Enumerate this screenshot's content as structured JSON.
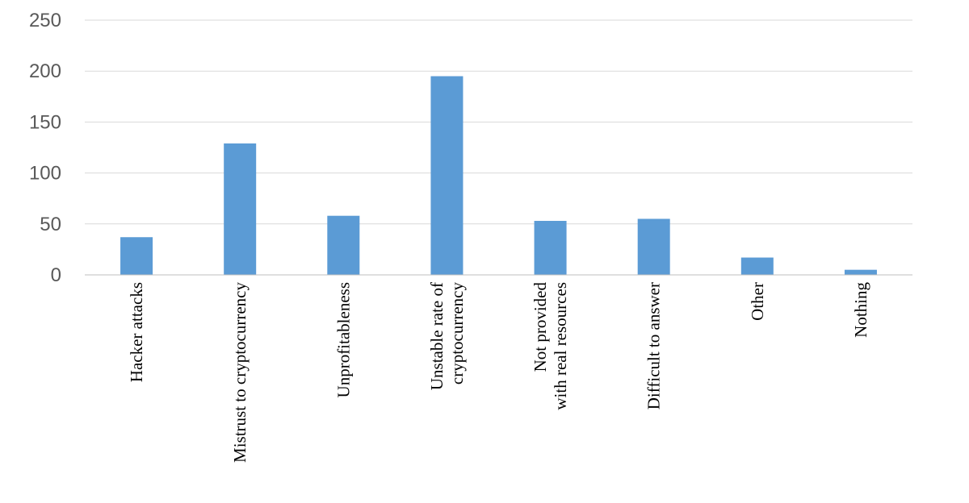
{
  "chart_data": {
    "type": "bar",
    "title": "",
    "xlabel": "",
    "ylabel": "",
    "categories": [
      [
        "Hacker attacks"
      ],
      [
        "Mistrust to cryptocurrency"
      ],
      [
        "Unprofitableness"
      ],
      [
        "Unstable rate of",
        "cryptocurrency"
      ],
      [
        "Not provided",
        "with real resources"
      ],
      [
        "Difficult to answer"
      ],
      [
        "Other"
      ],
      [
        "Nothing"
      ]
    ],
    "values": [
      37,
      129,
      58,
      195,
      53,
      55,
      17,
      5
    ],
    "ylim": [
      0,
      250
    ],
    "yticks": [
      0,
      50,
      100,
      150,
      200,
      250
    ],
    "grid": true,
    "legend": "none",
    "colors": {
      "bar": "#5b9bd5"
    }
  }
}
